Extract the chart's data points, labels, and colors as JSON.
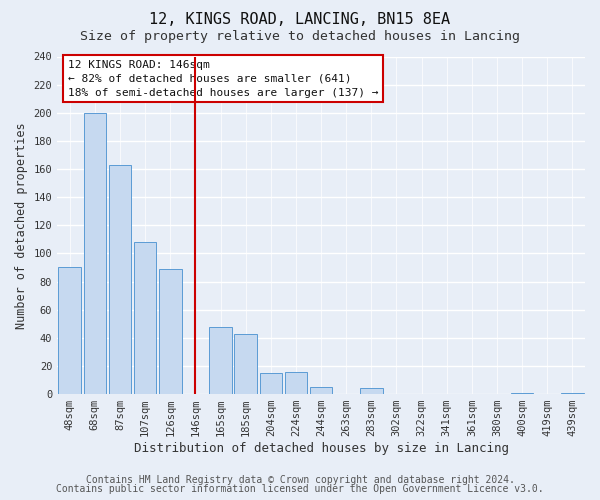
{
  "title": "12, KINGS ROAD, LANCING, BN15 8EA",
  "subtitle": "Size of property relative to detached houses in Lancing",
  "xlabel": "Distribution of detached houses by size in Lancing",
  "ylabel": "Number of detached properties",
  "categories": [
    "48sqm",
    "68sqm",
    "87sqm",
    "107sqm",
    "126sqm",
    "146sqm",
    "165sqm",
    "185sqm",
    "204sqm",
    "224sqm",
    "244sqm",
    "263sqm",
    "283sqm",
    "302sqm",
    "322sqm",
    "341sqm",
    "361sqm",
    "380sqm",
    "400sqm",
    "419sqm",
    "439sqm"
  ],
  "values": [
    90,
    200,
    163,
    108,
    89,
    0,
    48,
    43,
    15,
    16,
    5,
    0,
    4,
    0,
    0,
    0,
    0,
    0,
    1,
    0,
    1
  ],
  "bar_color": "#c6d9f0",
  "bar_edge_color": "#5b9bd5",
  "vline_color": "#cc0000",
  "ylim": [
    0,
    240
  ],
  "yticks": [
    0,
    20,
    40,
    60,
    80,
    100,
    120,
    140,
    160,
    180,
    200,
    220,
    240
  ],
  "annotation_title": "12 KINGS ROAD: 146sqm",
  "annotation_line1": "← 82% of detached houses are smaller (641)",
  "annotation_line2": "18% of semi-detached houses are larger (137) →",
  "annotation_box_color": "#ffffff",
  "annotation_box_edge": "#cc0000",
  "footer1": "Contains HM Land Registry data © Crown copyright and database right 2024.",
  "footer2": "Contains public sector information licensed under the Open Government Licence v3.0.",
  "background_color": "#e8eef7",
  "grid_color": "#ffffff",
  "title_fontsize": 11,
  "subtitle_fontsize": 9.5,
  "xlabel_fontsize": 9,
  "ylabel_fontsize": 8.5,
  "tick_fontsize": 7.5,
  "footer_fontsize": 7
}
